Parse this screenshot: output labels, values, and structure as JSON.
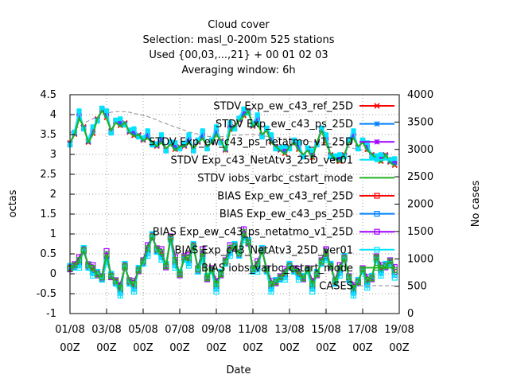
{
  "chart_data": {
    "type": "line",
    "title_lines": [
      "Cloud cover",
      "Selection: masl_0-200m    525 stations",
      "Used {00,03,...,21} + 00 01 02 03",
      "Averaging window:  6h"
    ],
    "xlabel": "Date",
    "ylabel": "octas",
    "y2label": "No cases",
    "xlim": [
      0,
      18
    ],
    "ylim": [
      -1,
      4.5
    ],
    "y2lim": [
      0,
      4000
    ],
    "x_ticks": [
      {
        "value": 0,
        "line1": "01/08",
        "line2": "00Z"
      },
      {
        "value": 2,
        "line1": "03/08",
        "line2": "00Z"
      },
      {
        "value": 4,
        "line1": "05/08",
        "line2": "00Z"
      },
      {
        "value": 6,
        "line1": "07/08",
        "line2": "00Z"
      },
      {
        "value": 8,
        "line1": "09/08",
        "line2": "00Z"
      },
      {
        "value": 10,
        "line1": "11/08",
        "line2": "00Z"
      },
      {
        "value": 12,
        "line1": "13/08",
        "line2": "00Z"
      },
      {
        "value": 14,
        "line1": "15/08",
        "line2": "00Z"
      },
      {
        "value": 16,
        "line1": "17/08",
        "line2": "00Z"
      },
      {
        "value": 18,
        "line1": "19/08",
        "line2": "00Z"
      }
    ],
    "y_ticks": [
      "-1",
      "-0.5",
      "0",
      "0.5",
      "1",
      "1.5",
      "2",
      "2.5",
      "3",
      "3.5",
      "4",
      "4.5"
    ],
    "y2_ticks": [
      "0",
      "500",
      "1000",
      "1500",
      "2000",
      "2500",
      "3000",
      "3500",
      "4000"
    ],
    "grid": true,
    "legend_position": "top-right",
    "series": [
      {
        "name": "STDV Exp_ew_c43_ref_25D",
        "color": "#ff0000",
        "marker": "x",
        "axis": "y1",
        "group": "stdv",
        "offset": 0.02
      },
      {
        "name": "STDV Exp_ew_c43_ps_25D",
        "color": "#0080ff",
        "marker": "star",
        "axis": "y1",
        "group": "stdv",
        "offset": 0.06
      },
      {
        "name": "STDV Exp_ew_c43_ps_netatmo_v1_25D",
        "color": "#a000ff",
        "marker": "star",
        "axis": "y1",
        "group": "stdv",
        "offset": 0.1
      },
      {
        "name": "STDV Exp_c43_NetAtv3_25D_ver01",
        "color": "#00e5ff",
        "marker": "square-filled",
        "axis": "y1",
        "group": "stdv",
        "offset": 0.13
      },
      {
        "name": "STDV iobs_varbc_cstart_mode",
        "color": "#22b022",
        "marker": "none",
        "axis": "y1",
        "group": "stdv",
        "offset": 0.0
      },
      {
        "name": "BIAS Exp_ew_c43_ref_25D",
        "color": "#ff0000",
        "marker": "square",
        "axis": "y1",
        "group": "bias",
        "offset": 0.0
      },
      {
        "name": "BIAS Exp_ew_c43_ps_25D",
        "color": "#0080ff",
        "marker": "square",
        "axis": "y1",
        "group": "bias",
        "offset": -0.05
      },
      {
        "name": "BIAS Exp_ew_c43_ps_netatmo_v1_25D",
        "color": "#a000ff",
        "marker": "square",
        "axis": "y1",
        "group": "bias",
        "offset": 0.08
      },
      {
        "name": "BIAS Exp_c43_NetAtv3_25D_ver01",
        "color": "#00e5ff",
        "marker": "square",
        "axis": "y1",
        "group": "bias",
        "offset": -0.1
      },
      {
        "name": "BIAS iobs_varbc_cstart_mode",
        "color": "#22b022",
        "marker": "square",
        "axis": "y1",
        "group": "bias",
        "offset": 0.03
      },
      {
        "name": "CASES",
        "color": "#a0a0a0",
        "marker": "none",
        "axis": "y2",
        "group": "cases",
        "offset": 0.0
      }
    ],
    "x": [
      0.0,
      0.25,
      0.5,
      0.75,
      1.0,
      1.25,
      1.5,
      1.75,
      2.0,
      2.25,
      2.5,
      2.75,
      3.0,
      3.25,
      3.5,
      3.75,
      4.0,
      4.25,
      4.5,
      4.75,
      5.0,
      5.25,
      5.5,
      5.75,
      6.0,
      6.25,
      6.5,
      6.75,
      7.0,
      7.25,
      7.5,
      7.75,
      8.0,
      8.25,
      8.5,
      8.75,
      9.0,
      9.25,
      9.5,
      9.75,
      10.0,
      10.25,
      10.5,
      10.75,
      11.0,
      11.25,
      11.5,
      11.75,
      12.0,
      12.25,
      12.5,
      12.75,
      13.0,
      13.25,
      13.5,
      13.75,
      14.0,
      14.25,
      14.5,
      14.75,
      15.0,
      15.25,
      15.5,
      15.75,
      16.0,
      16.25,
      16.5,
      16.75,
      17.0,
      17.25,
      17.5,
      17.75
    ],
    "stdv_base": [
      3.3,
      3.5,
      3.9,
      3.7,
      3.3,
      3.5,
      3.9,
      4.1,
      3.9,
      3.6,
      3.8,
      3.7,
      3.8,
      3.55,
      3.45,
      3.5,
      3.35,
      3.4,
      3.3,
      3.2,
      3.3,
      3.15,
      3.25,
      3.1,
      3.2,
      3.2,
      3.3,
      3.15,
      3.3,
      3.4,
      3.2,
      3.3,
      3.5,
      3.35,
      3.1,
      3.6,
      3.7,
      3.85,
      3.95,
      4.1,
      3.7,
      3.8,
      3.5,
      3.6,
      3.3,
      3.2,
      3.1,
      3.0,
      3.2,
      3.3,
      3.1,
      3.0,
      3.1,
      2.9,
      3.3,
      3.6,
      3.3,
      3.0,
      2.9,
      2.8,
      3.0,
      3.3,
      3.4,
      3.2,
      3.3,
      3.1,
      3.0,
      2.9,
      2.8,
      3.0,
      2.8,
      2.7
    ],
    "bias_base": [
      0.15,
      0.2,
      0.3,
      0.6,
      0.2,
      0.1,
      0.0,
      -0.1,
      0.45,
      -0.05,
      -0.2,
      -0.4,
      0.2,
      -0.2,
      -0.3,
      0.1,
      0.3,
      0.6,
      0.95,
      0.6,
      0.5,
      0.2,
      0.9,
      0.3,
      0.0,
      0.4,
      0.35,
      0.7,
      0.1,
      0.5,
      -0.1,
      0.1,
      -0.3,
      0.0,
      0.3,
      0.6,
      0.7,
      0.5,
      1.0,
      0.8,
      0.1,
      0.2,
      0.6,
      0.1,
      -0.3,
      -0.2,
      -0.1,
      0.0,
      0.2,
      0.1,
      0.0,
      -0.1,
      0.1,
      -0.3,
      0.0,
      0.3,
      0.5,
      0.2,
      -0.2,
      0.1,
      0.4,
      -0.1,
      -0.4,
      -0.2,
      0.1,
      -0.2,
      -0.1,
      0.4,
      0.1,
      0.2,
      0.3,
      0.05
    ],
    "cases_values": [
      3300,
      3360,
      3420,
      3480,
      3520,
      3560,
      3600,
      3640,
      3660,
      3680,
      3690,
      3690,
      3690,
      3680,
      3660,
      3640,
      3620,
      3600,
      3570,
      3540,
      3500,
      3470,
      3440,
      3410,
      3380,
      3350,
      3320,
      3300,
      3280,
      3260,
      3240,
      3230,
      3230,
      3230,
      3240,
      3250,
      3260,
      3260,
      3270,
      3270,
      3270,
      3260,
      3250,
      3240,
      3230,
      3220,
      3210,
      3200,
      3190,
      3180,
      3170,
      3160,
      3150,
      3140,
      3130,
      3120,
      3110,
      3100,
      3090,
      3080,
      3060,
      3040,
      3020,
      3000,
      2980,
      2960,
      2940,
      2920,
      2900,
      2880,
      2860,
      2840
    ]
  }
}
